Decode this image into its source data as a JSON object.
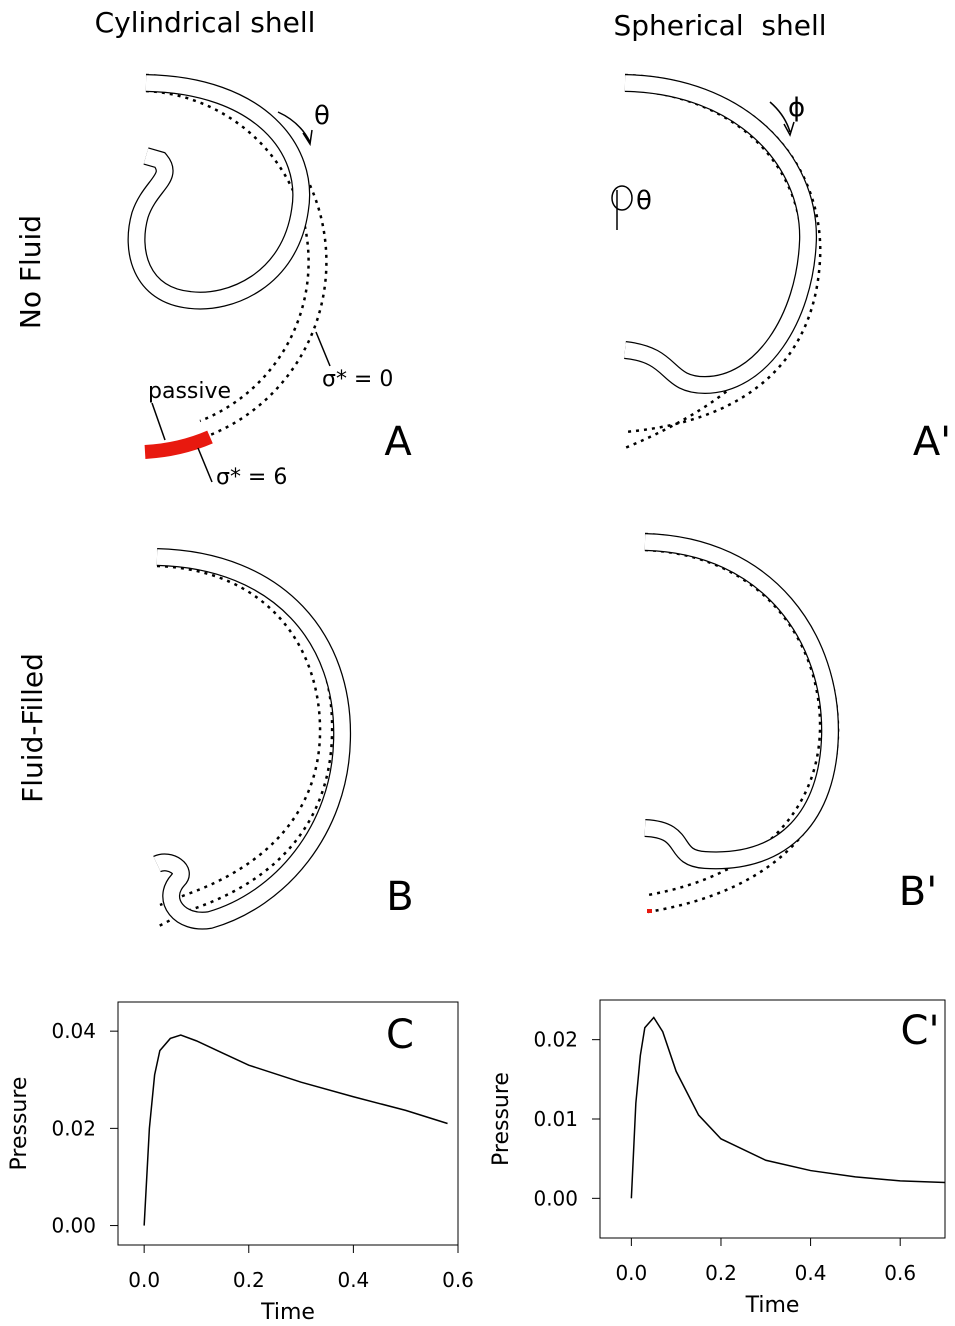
{
  "column_titles": [
    "Cylindrical shell",
    "Spherical  shell"
  ],
  "row_labels": [
    "No Fluid",
    "Fluid-Filled"
  ],
  "panel_labels": [
    "A",
    "A'",
    "B",
    "B'",
    "C",
    "C'"
  ],
  "annotations": [
    "passive",
    "σ* = 0",
    "σ* = 6"
  ],
  "symbols": [
    "θ",
    "ϕ",
    "θ"
  ],
  "chart_data": [
    {
      "type": "line",
      "xlabel": "Time",
      "ylabel": "Pressure",
      "color": "#000000",
      "x": [
        0,
        0.01,
        0.02,
        0.03,
        0.05,
        0.07,
        0.1,
        0.15,
        0.2,
        0.3,
        0.4,
        0.5,
        0.58
      ],
      "values": [
        0,
        0.02,
        0.031,
        0.036,
        0.0385,
        0.0392,
        0.038,
        0.0355,
        0.033,
        0.0295,
        0.0265,
        0.0237,
        0.021
      ],
      "xlim": [
        -0.05,
        0.6
      ],
      "ylim": [
        -0.004,
        0.046
      ],
      "xticks": [
        {
          "value": 0,
          "label": "0.0"
        },
        0.2,
        0.4,
        0.6
      ],
      "yticks": [
        {
          "value": 0,
          "label": "0.00"
        },
        0.02,
        0.04
      ]
    },
    {
      "type": "line",
      "xlabel": "Time",
      "ylabel": "Pressure",
      "color": "#000000",
      "x": [
        0,
        0.01,
        0.02,
        0.03,
        0.05,
        0.07,
        0.1,
        0.15,
        0.2,
        0.3,
        0.4,
        0.5,
        0.6,
        0.7
      ],
      "values": [
        0,
        0.012,
        0.018,
        0.0215,
        0.0228,
        0.021,
        0.016,
        0.0105,
        0.0075,
        0.0048,
        0.0035,
        0.0027,
        0.0022,
        0.002
      ],
      "xlim": [
        -0.07,
        0.7
      ],
      "ylim": [
        -0.005,
        0.025
      ],
      "xticks": [
        {
          "value": 0,
          "label": "0.0"
        },
        0.2,
        0.4,
        0.6
      ],
      "yticks": [
        {
          "value": 0,
          "label": "0.00"
        },
        0.01,
        0.02
      ]
    }
  ]
}
